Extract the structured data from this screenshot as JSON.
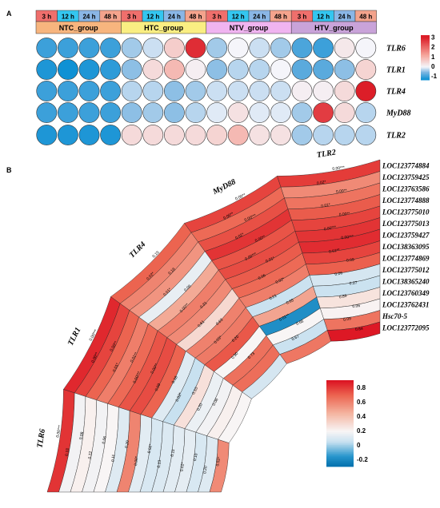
{
  "panel_a": {
    "label": "A",
    "chart_data": {
      "type": "heatmap",
      "time_points": [
        "3 h",
        "12 h",
        "24 h",
        "48 h"
      ],
      "groups": [
        "NTC_group",
        "HTC_group",
        "NTV_group",
        "HTV_group"
      ],
      "genes": [
        "TLR6",
        "TLR1",
        "TLR4",
        "MyD88",
        "TLR2"
      ],
      "values": [
        [
          -1.0,
          -1.0,
          -1.0,
          -1.0,
          -0.4,
          -0.2,
          0.6,
          2.8,
          -0.4,
          0.0,
          -0.2,
          -0.4,
          -0.9,
          -1.0,
          0.2,
          0.0
        ],
        [
          -1.2,
          -1.3,
          -1.2,
          -1.1,
          -0.5,
          0.4,
          0.9,
          0.1,
          -0.5,
          -0.3,
          -0.3,
          0.0,
          -0.8,
          -0.8,
          -0.5,
          0.5
        ],
        [
          -1.0,
          -1.0,
          -1.0,
          -1.0,
          -0.3,
          -0.3,
          -0.5,
          -0.4,
          -0.2,
          -0.2,
          -0.2,
          -0.2,
          0.1,
          0.1,
          0.4,
          3.0
        ],
        [
          -1.0,
          -1.0,
          -1.0,
          -1.0,
          -0.5,
          -0.4,
          -0.5,
          -0.3,
          -0.1,
          0.3,
          -0.1,
          -0.1,
          -0.4,
          2.6,
          0.4,
          -0.3
        ],
        [
          -1.2,
          -1.2,
          -1.2,
          -1.2,
          0.4,
          0.4,
          0.4,
          0.4,
          0.5,
          0.9,
          0.3,
          0.3,
          -0.4,
          -0.3,
          -0.3,
          -0.3
        ]
      ],
      "legend": {
        "ticks": [
          "3",
          "2",
          "1",
          "0",
          "-1"
        ],
        "min": -1.4,
        "max": 3.2
      }
    }
  },
  "panel_b": {
    "label": "B",
    "chart_data": {
      "type": "heatmap",
      "rings": [
        "TLR2",
        "MyD88",
        "TLR4",
        "TLR1",
        "TLR6"
      ],
      "genes": [
        "LOC123774884",
        "LOC123759425",
        "LOC123763586",
        "LOC123774888",
        "LOC123775010",
        "LOC123775013",
        "LOC123759427",
        "LOC138363095",
        "LOC123774869",
        "LOC123775012",
        "LOC138365240",
        "LOC123760349",
        "LOC123762431",
        "Hsc70-5",
        "LOC123772095"
      ],
      "values": [
        [
          0.8,
          0.58,
          0.65,
          0.72,
          0.78,
          0.82,
          0.84,
          0.78,
          0.71,
          0.09,
          0.06,
          0.27,
          0.21,
          0.65,
          0.89
        ],
        [
          0.78,
          0.68,
          0.75,
          0.82,
          0.74,
          0.76,
          0.72,
          0.68,
          0.62,
          0.06,
          0.5,
          -0.18,
          0.2,
          0.06,
          0.64
        ],
        [
          0.7,
          0.6,
          0.55,
          0.15,
          0.48,
          0.62,
          0.58,
          0.31,
          0.61,
          0.63,
          0.73,
          0.2,
          0.66,
          0.67,
          0.09
        ],
        [
          0.85,
          0.78,
          0.7,
          0.62,
          0.68,
          0.74,
          0.76,
          0.7,
          0.12,
          0.05,
          0.28,
          0.16,
          0.18,
          0.22,
          0.2
        ],
        [
          0.82,
          0.18,
          0.22,
          0.18,
          0.2,
          0.12,
          0.6,
          0.13,
          0.1,
          0.11,
          0.13,
          0.14,
          0.1,
          0.12,
          0.58
        ]
      ],
      "labels": [
        [
          "0.00***",
          "0.02*",
          "0.00**",
          "0.01*",
          "0.00**",
          "0.00***",
          "0.00***",
          "0.01**",
          "0.09",
          "0.06",
          "0.27",
          "0.89",
          "0.06",
          "0.09",
          "0.64"
        ],
        [
          "0.00**",
          "0.00**",
          "0.00***",
          "0.02*",
          "0.00**",
          "0.00***",
          "0.01*",
          "0.06",
          "0.02*",
          "0.21",
          "0.65",
          "0.01**",
          "0.66",
          "0.67",
          ""
        ],
        [
          "0.15",
          "0.02*",
          "0.18",
          "0.01*",
          "0.06",
          "0.00**",
          "0.31",
          "0.61",
          "0.63",
          "0.03*",
          "0.20",
          "0.90",
          "0.73",
          "",
          ""
        ],
        [
          "0.00***",
          "0.00**",
          "0.00**",
          "0.01*",
          "0.01**",
          "0.00***",
          "0.00**",
          "0.09",
          "0.18",
          "0.02*",
          "0.10",
          "0.20",
          "0.06",
          "",
          ""
        ],
        [
          "0.00***",
          "0.18",
          "0.08",
          "0.22",
          "0.06",
          "0.11",
          "0.20",
          "0.00*",
          "0.02*",
          "0.13",
          "0.11",
          "0.02*",
          "0.10",
          "0.20",
          "0.02*"
        ]
      ],
      "legend": {
        "ticks": [
          "0.8",
          "0.6",
          "0.4",
          "0.2",
          "0",
          "-0.2"
        ],
        "min": -0.3,
        "max": 0.9
      }
    }
  }
}
